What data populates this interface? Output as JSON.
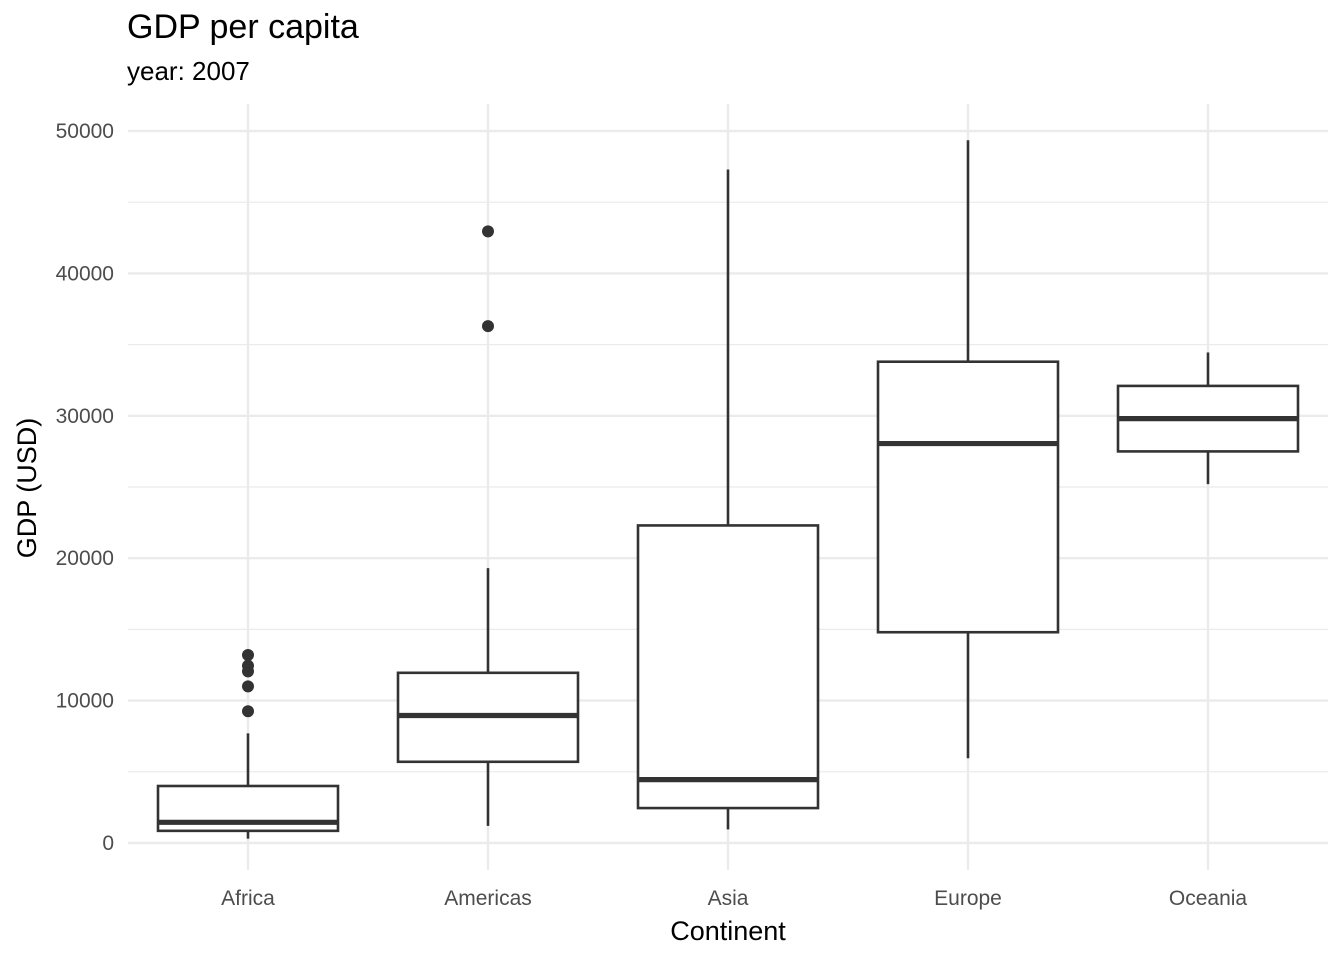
{
  "chart_data": {
    "type": "boxplot",
    "title": "GDP per capita",
    "subtitle": "year: 2007",
    "xlabel": "Continent",
    "ylabel": "GDP (USD)",
    "categories": [
      "Africa",
      "Americas",
      "Asia",
      "Europe",
      "Oceania"
    ],
    "ylim": [
      -1900,
      51900
    ],
    "yticks": [
      0,
      10000,
      20000,
      30000,
      40000,
      50000
    ],
    "ytick_labels": [
      "0",
      "10000",
      "20000",
      "30000",
      "40000",
      "50000"
    ],
    "grid": true,
    "legend": "none",
    "boxes": [
      {
        "category": "Africa",
        "whisker_low": 300,
        "q1": 850,
        "median": 1450,
        "q3": 4000,
        "whisker_high": 7700,
        "outliers": [
          9250,
          11000,
          12050,
          12450,
          13200
        ]
      },
      {
        "category": "Americas",
        "whisker_low": 1200,
        "q1": 5700,
        "median": 8950,
        "q3": 11950,
        "whisker_high": 19300,
        "outliers": [
          36300,
          42950
        ]
      },
      {
        "category": "Asia",
        "whisker_low": 950,
        "q1": 2450,
        "median": 4450,
        "q3": 22300,
        "whisker_high": 47300,
        "outliers": []
      },
      {
        "category": "Europe",
        "whisker_low": 5950,
        "q1": 14800,
        "median": 28050,
        "q3": 33800,
        "whisker_high": 49350,
        "outliers": []
      },
      {
        "category": "Oceania",
        "whisker_low": 25200,
        "q1": 27500,
        "median": 29800,
        "q3": 32100,
        "whisker_high": 34450,
        "outliers": []
      }
    ]
  },
  "colors": {
    "background": "#ffffff",
    "major_grid": "#ebebeb",
    "minor_grid": "#ebebeb",
    "box_stroke": "#333333",
    "median": "#333333",
    "outlier": "#333333",
    "tick_text": "#4d4d4d",
    "title_text": "#000000"
  }
}
